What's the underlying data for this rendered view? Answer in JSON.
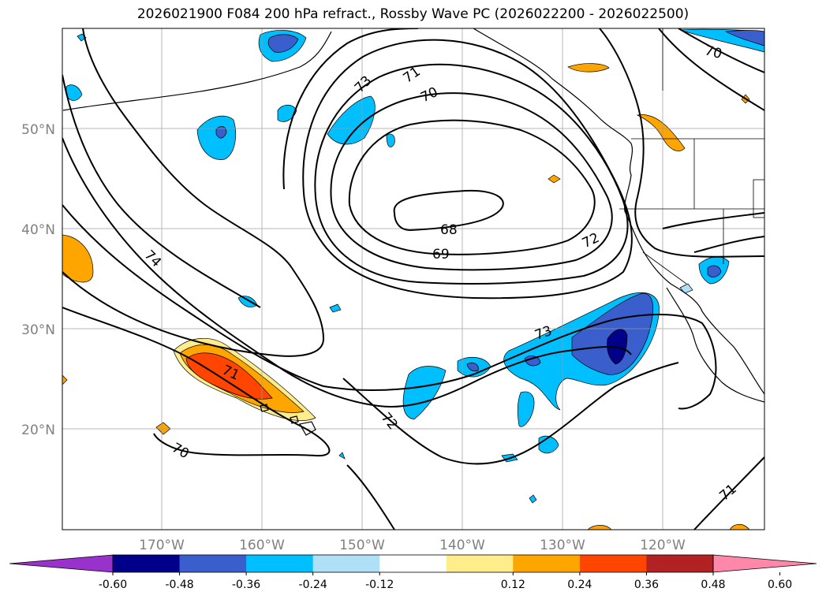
{
  "title": "2026021900 F084 200 hPa refract., Rossby Wave PC (2026022200 - 2026022500)",
  "lat_ticks": [
    "50°N",
    "40°N",
    "30°N",
    "20°N"
  ],
  "lon_ticks": [
    "170°W",
    "160°W",
    "150°W",
    "140°W",
    "130°W",
    "120°W"
  ],
  "contour_labels": [
    "74",
    "73",
    "72",
    "71",
    "70",
    "69",
    "68",
    "73",
    "72",
    "71",
    "70",
    "71",
    "70"
  ],
  "colorbar": {
    "ticks": [
      "-0.60",
      "-0.48",
      "-0.36",
      "-0.24",
      "-0.12",
      "0.12",
      "0.24",
      "0.36",
      "0.48",
      "0.60"
    ],
    "colors": [
      "#9932cc",
      "#00008b",
      "#3a5fcd",
      "#00bfff",
      "#b0e0f8",
      "#ffffff",
      "#ffec8b",
      "#ffa500",
      "#ff4500",
      "#b22222",
      "#ff88aa"
    ]
  },
  "colors": {
    "blue_dark": "#00008b",
    "blue_med": "#3a5fcd",
    "blue": "#00bfff",
    "blue_light": "#b0e0f8",
    "yellow": "#ffec8b",
    "orange": "#ffa500",
    "red_orange": "#ff4500"
  }
}
